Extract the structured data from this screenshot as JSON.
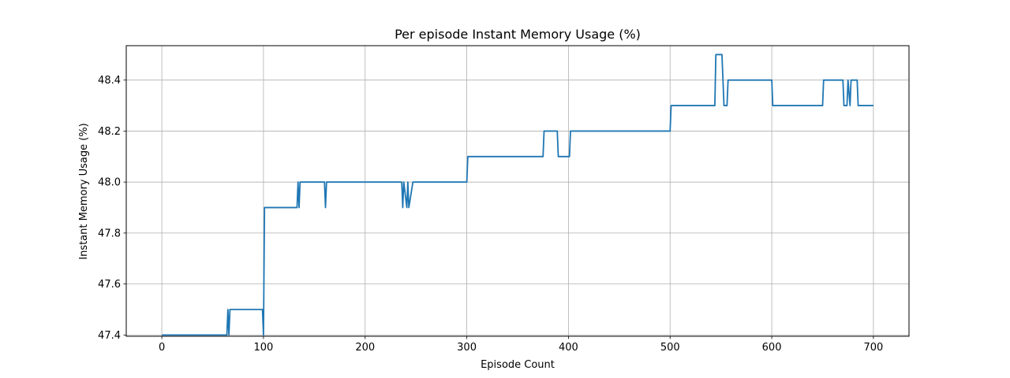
{
  "chart_data": {
    "type": "line",
    "title": "Per episode Instant Memory Usage (%)",
    "xlabel": "Episode Count",
    "ylabel": "Instant Memory Usage (%)",
    "xlim": [
      -35,
      735
    ],
    "ylim": [
      47.395,
      48.535
    ],
    "xticks": [
      0,
      100,
      200,
      300,
      400,
      500,
      600,
      700
    ],
    "yticks": [
      47.4,
      47.6,
      47.8,
      48.0,
      48.2,
      48.4
    ],
    "grid": true,
    "line_color": "#1f77b4",
    "series": [
      {
        "x": [
          0,
          64,
          65,
          66,
          67,
          99,
          100,
          101,
          133,
          134,
          135,
          136,
          160,
          161,
          162,
          236,
          237,
          238,
          241,
          242,
          243,
          247,
          300,
          301,
          375,
          376,
          389,
          390,
          401,
          402,
          500,
          501,
          544,
          545,
          551,
          552,
          553,
          556,
          557,
          600,
          601,
          650,
          651,
          670,
          671,
          674,
          675,
          677,
          678,
          679,
          684,
          685,
          700
        ],
        "y": [
          47.4,
          47.4,
          47.5,
          47.4,
          47.5,
          47.5,
          47.4,
          47.9,
          47.9,
          48.0,
          47.9,
          48.0,
          48.0,
          47.9,
          48.0,
          48.0,
          47.9,
          48.0,
          47.9,
          48.0,
          47.9,
          48.0,
          48.0,
          48.1,
          48.1,
          48.2,
          48.2,
          48.1,
          48.1,
          48.2,
          48.2,
          48.3,
          48.3,
          48.5,
          48.5,
          48.4,
          48.3,
          48.3,
          48.4,
          48.4,
          48.3,
          48.3,
          48.4,
          48.4,
          48.3,
          48.3,
          48.4,
          48.3,
          48.4,
          48.4,
          48.4,
          48.3,
          48.3
        ]
      }
    ]
  }
}
